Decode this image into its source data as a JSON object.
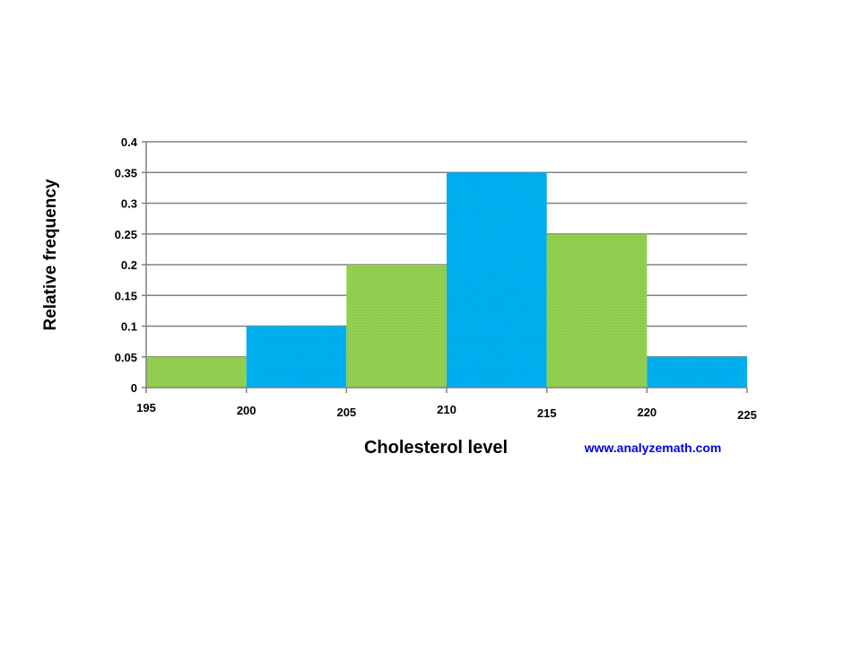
{
  "chart_data": {
    "type": "bar",
    "bins": [
      {
        "from": 195,
        "to": 200,
        "value": 0.05,
        "color": "#92d050"
      },
      {
        "from": 200,
        "to": 205,
        "value": 0.1,
        "color": "#00b0f0"
      },
      {
        "from": 205,
        "to": 210,
        "value": 0.2,
        "color": "#92d050"
      },
      {
        "from": 210,
        "to": 215,
        "value": 0.35,
        "color": "#00b0f0"
      },
      {
        "from": 215,
        "to": 220,
        "value": 0.25,
        "color": "#92d050"
      },
      {
        "from": 220,
        "to": 225,
        "value": 0.05,
        "color": "#00b0f0"
      }
    ],
    "x_ticks": [
      "195",
      "200",
      "205",
      "210",
      "215",
      "220",
      "225"
    ],
    "y_ticks": [
      "0",
      "0.05",
      "0.1",
      "0.15",
      "0.2",
      "0.25",
      "0.3",
      "0.35",
      "0.4"
    ],
    "xlabel": "Cholesterol level",
    "ylabel": "Relative frequency",
    "xlim": [
      195,
      225
    ],
    "ylim": [
      0,
      0.4
    ],
    "grid": true,
    "gridlines": "horizontal"
  },
  "watermark": "www.analyzemath.com",
  "colors": {
    "green": "#92d050",
    "blue": "#00b0f0",
    "grid": "#808080",
    "watermark": "#0000ee"
  }
}
